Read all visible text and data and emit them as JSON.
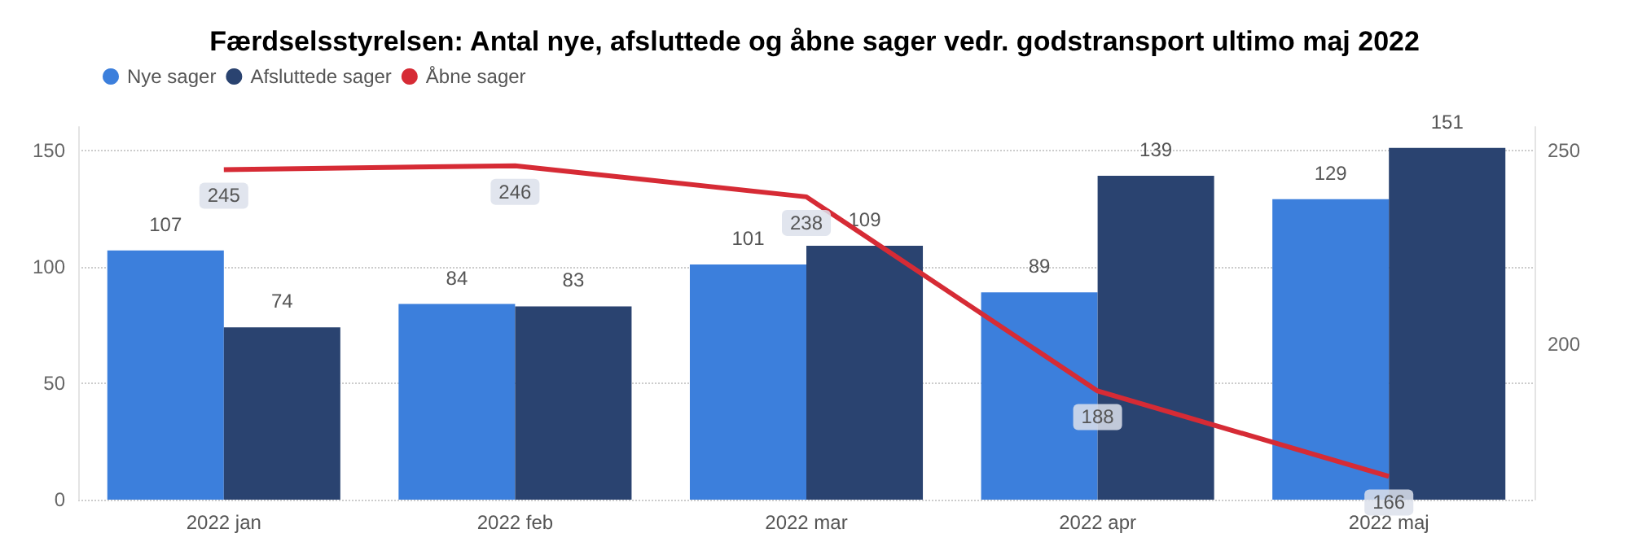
{
  "chart_data": {
    "type": "bar",
    "title": "Færdselsstyrelsen: Antal nye, afsluttede og åbne sager vedr. godstransport ultimo maj 2022",
    "categories": [
      "2022 jan",
      "2022 feb",
      "2022 mar",
      "2022 apr",
      "2022 maj"
    ],
    "series": [
      {
        "name": "Nye sager",
        "color": "#3c7fdc",
        "values": [
          107,
          84,
          101,
          89,
          129
        ]
      },
      {
        "name": "Afsluttede sager",
        "color": "#2a4370",
        "values": [
          74,
          83,
          109,
          139,
          151
        ]
      },
      {
        "name": "Åbne sager",
        "type": "line",
        "axis": "y2",
        "color": "#d62b35",
        "values": [
          245,
          246,
          238,
          188,
          166
        ]
      }
    ],
    "ylim": [
      0,
      160
    ],
    "yticks": [
      0,
      50,
      100,
      150
    ],
    "y2lim": [
      160,
      256
    ],
    "y2ticks": [
      200,
      250
    ],
    "grid": "y",
    "legend": "top left",
    "data_labels": true,
    "marker": "none"
  }
}
